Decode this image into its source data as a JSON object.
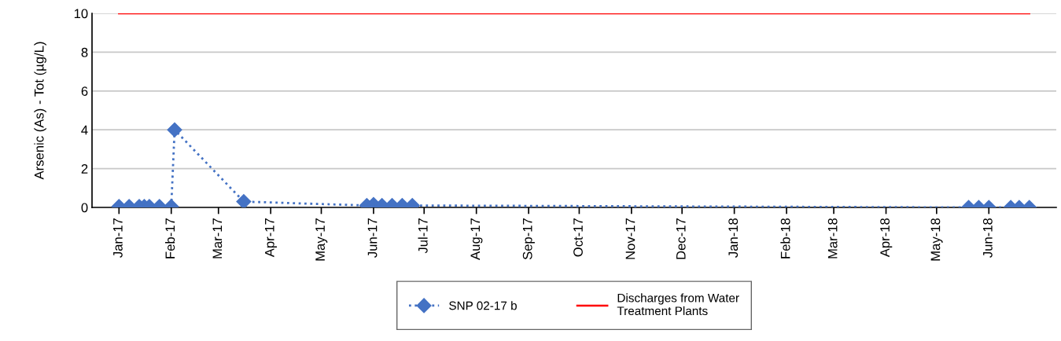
{
  "chart_data": {
    "type": "line",
    "ylabel": "Arsenic (As) - Tot (µg/L)",
    "xlim": [
      "2016-12-16",
      "2018-07-11"
    ],
    "xticks": [
      {
        "value": "2017-01-01",
        "label": "Jan-17"
      },
      {
        "value": "2017-02-01",
        "label": "Feb-17"
      },
      {
        "value": "2017-03-01",
        "label": "Mar-17"
      },
      {
        "value": "2017-04-01",
        "label": "Apr-17"
      },
      {
        "value": "2017-05-01",
        "label": "May-17"
      },
      {
        "value": "2017-06-01",
        "label": "Jun-17"
      },
      {
        "value": "2017-07-01",
        "label": "Jul-17"
      },
      {
        "value": "2017-08-01",
        "label": "Aug-17"
      },
      {
        "value": "2017-09-01",
        "label": "Sep-17"
      },
      {
        "value": "2017-10-01",
        "label": "Oct-17"
      },
      {
        "value": "2017-11-01",
        "label": "Nov-17"
      },
      {
        "value": "2017-12-01",
        "label": "Dec-17"
      },
      {
        "value": "2018-01-01",
        "label": "Jan-18"
      },
      {
        "value": "2018-02-01",
        "label": "Feb-18"
      },
      {
        "value": "2018-03-01",
        "label": "Mar-18"
      },
      {
        "value": "2018-04-01",
        "label": "Apr-18"
      },
      {
        "value": "2018-05-01",
        "label": "May-18"
      },
      {
        "value": "2018-06-01",
        "label": "Jun-18"
      }
    ],
    "ylim": [
      0,
      10
    ],
    "yticks": [
      0,
      2,
      4,
      6,
      8,
      10
    ],
    "grid": "y",
    "legend": "bottom",
    "series": [
      {
        "name": "SNP 02-17 b",
        "color": "#4472c4",
        "marker": "diamond",
        "line_style": "dotted",
        "x": [
          "2017-01-01",
          "2017-01-07",
          "2017-01-13",
          "2017-01-16",
          "2017-01-19",
          "2017-01-25",
          "2017-02-01",
          "2017-02-03",
          "2017-03-16",
          "2017-05-28",
          "2017-06-01",
          "2017-06-06",
          "2017-06-12",
          "2017-06-18",
          "2017-06-24",
          "2018-05-20",
          "2018-05-26",
          "2018-06-01",
          "2018-06-14",
          "2018-06-19",
          "2018-06-25"
        ],
        "values": [
          0.05,
          0.05,
          0.05,
          0.05,
          0.05,
          0.05,
          0.05,
          4,
          0.3,
          0.1,
          0.15,
          0.1,
          0.1,
          0.1,
          0.1,
          0,
          0,
          0,
          0,
          0,
          0
        ]
      },
      {
        "name": "Discharges from Water\nTreatment Plants",
        "color": "#ff0000",
        "marker": "none",
        "line_style": "solid",
        "x": [
          "2017-01-01",
          "2018-06-25"
        ],
        "values": [
          10,
          10
        ]
      }
    ]
  }
}
